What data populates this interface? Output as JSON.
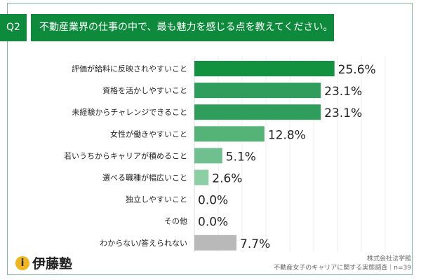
{
  "header": {
    "q_label": "Q2",
    "question": "不動産業界の仕事の中で、最も魅力を感じる点を教えてください。"
  },
  "chart_data": {
    "type": "bar",
    "orientation": "horizontal",
    "categories": [
      "評価が給料に反映されやすいこと",
      "資格を活かしやすいこと",
      "未経験からチャレンジできること",
      "女性が働きやすいこと",
      "若いうちからキャリアが積めること",
      "選べる職種が幅広いこと",
      "独立しやすいこと",
      "その他",
      "わからない/答えられない"
    ],
    "values": [
      25.6,
      23.1,
      23.1,
      12.8,
      5.1,
      2.6,
      0.0,
      0.0,
      7.7
    ],
    "data_labels": [
      "25.6%",
      "23.1%",
      "23.1%",
      "12.8%",
      "5.1%",
      "2.6%",
      "0.0%",
      "0.0%",
      "7.7%"
    ],
    "colors": [
      "#12913f",
      "#2f9e5c",
      "#2f9e5c",
      "#55b378",
      "#6fc08e",
      "#8dcfa5",
      "#8dcfa5",
      "#8dcfa5",
      "#b9b9b9"
    ],
    "grid": true
  },
  "footer": {
    "logo_text": "伊藤塾",
    "company": "株式会社法学館",
    "survey": "不動産女子のキャリアに関する実態調査｜n=39"
  }
}
